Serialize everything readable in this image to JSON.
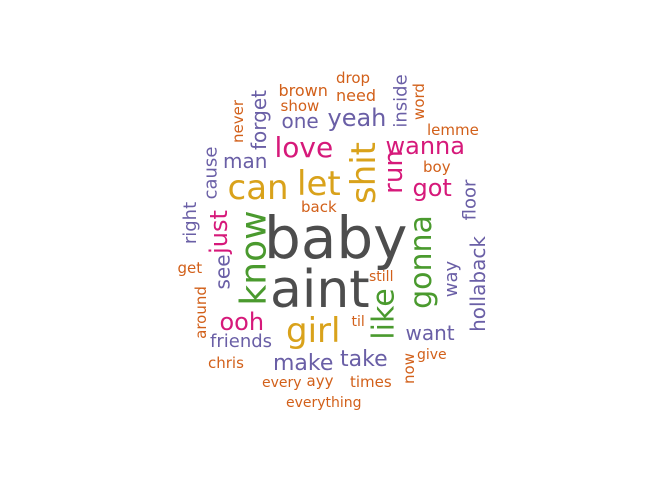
{
  "colors": {
    "dark": "#4d4d4d",
    "green": "#4a9a2e",
    "gold": "#d9a21b",
    "magenta": "#d6197a",
    "purple": "#6a5fa6",
    "orange": "#d2601a"
  },
  "words": [
    {
      "text": "baby",
      "color": "dark",
      "rotate": false
    },
    {
      "text": "aint",
      "color": "dark",
      "rotate": false
    },
    {
      "text": "know",
      "color": "green",
      "rotate": true
    },
    {
      "text": "girl",
      "color": "gold",
      "rotate": false
    },
    {
      "text": "like",
      "color": "green",
      "rotate": true
    },
    {
      "text": "shit",
      "color": "gold",
      "rotate": true
    },
    {
      "text": "let",
      "color": "gold",
      "rotate": false
    },
    {
      "text": "can",
      "color": "gold",
      "rotate": false
    },
    {
      "text": "gonna",
      "color": "green",
      "rotate": true
    },
    {
      "text": "love",
      "color": "magenta",
      "rotate": false
    },
    {
      "text": "run",
      "color": "magenta",
      "rotate": true
    },
    {
      "text": "ooh",
      "color": "magenta",
      "rotate": false
    },
    {
      "text": "just",
      "color": "magenta",
      "rotate": true
    },
    {
      "text": "wanna",
      "color": "magenta",
      "rotate": false
    },
    {
      "text": "got",
      "color": "magenta",
      "rotate": false
    },
    {
      "text": "yeah",
      "color": "purple",
      "rotate": false
    },
    {
      "text": "make",
      "color": "purple",
      "rotate": false
    },
    {
      "text": "take",
      "color": "purple",
      "rotate": false
    },
    {
      "text": "one",
      "color": "purple",
      "rotate": false
    },
    {
      "text": "man",
      "color": "purple",
      "rotate": false
    },
    {
      "text": "forget",
      "color": "purple",
      "rotate": true
    },
    {
      "text": "see",
      "color": "purple",
      "rotate": true
    },
    {
      "text": "way",
      "color": "purple",
      "rotate": true
    },
    {
      "text": "want",
      "color": "purple",
      "rotate": false
    },
    {
      "text": "hollaback",
      "color": "purple",
      "rotate": true
    },
    {
      "text": "floor",
      "color": "purple",
      "rotate": true
    },
    {
      "text": "cause",
      "color": "purple",
      "rotate": true
    },
    {
      "text": "right",
      "color": "purple",
      "rotate": true
    },
    {
      "text": "friends",
      "color": "purple",
      "rotate": false
    },
    {
      "text": "inside",
      "color": "purple",
      "rotate": true
    },
    {
      "text": "need",
      "color": "orange",
      "rotate": false
    },
    {
      "text": "brown",
      "color": "orange",
      "rotate": false
    },
    {
      "text": "show",
      "color": "orange",
      "rotate": false
    },
    {
      "text": "drop",
      "color": "orange",
      "rotate": false
    },
    {
      "text": "word",
      "color": "orange",
      "rotate": true
    },
    {
      "text": "lemme",
      "color": "orange",
      "rotate": false
    },
    {
      "text": "never",
      "color": "orange",
      "rotate": true
    },
    {
      "text": "boy",
      "color": "orange",
      "rotate": false
    },
    {
      "text": "back",
      "color": "orange",
      "rotate": false
    },
    {
      "text": "get",
      "color": "orange",
      "rotate": false
    },
    {
      "text": "around",
      "color": "orange",
      "rotate": true
    },
    {
      "text": "still",
      "color": "orange",
      "rotate": false
    },
    {
      "text": "til",
      "color": "orange",
      "rotate": false
    },
    {
      "text": "chris",
      "color": "orange",
      "rotate": false
    },
    {
      "text": "give",
      "color": "orange",
      "rotate": false
    },
    {
      "text": "now",
      "color": "orange",
      "rotate": true
    },
    {
      "text": "every",
      "color": "orange",
      "rotate": false
    },
    {
      "text": "ayy",
      "color": "orange",
      "rotate": false
    },
    {
      "text": "times",
      "color": "orange",
      "rotate": false
    },
    {
      "text": "everything",
      "color": "orange",
      "rotate": false
    }
  ]
}
